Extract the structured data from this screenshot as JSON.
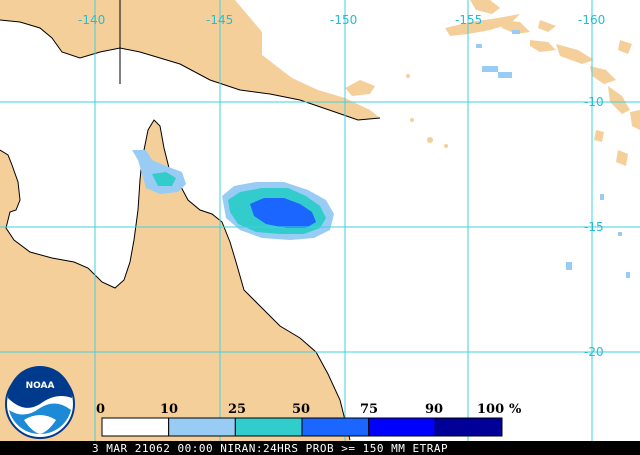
{
  "map": {
    "longitude_labels": [
      "-140",
      "-145",
      "-150",
      "-155",
      "-160"
    ],
    "latitude_labels": [
      "-10",
      "-15",
      "-20"
    ],
    "land_color": "#f5cf9a",
    "grid_color": "#3fd0e0"
  },
  "legend": {
    "ticks": [
      "0",
      "10",
      "25",
      "50",
      "75",
      "90",
      "100"
    ],
    "unit": "%",
    "bins": [
      {
        "from": 0,
        "to": 10,
        "color": "#ffffff"
      },
      {
        "from": 10,
        "to": 25,
        "color": "#99ccf5"
      },
      {
        "from": 25,
        "to": 50,
        "color": "#33cccc"
      },
      {
        "from": 50,
        "to": 75,
        "color": "#1a66ff"
      },
      {
        "from": 75,
        "to": 90,
        "color": "#0000ff"
      },
      {
        "from": 90,
        "to": 100,
        "color": "#000099"
      }
    ]
  },
  "logo": {
    "text": "NOAA"
  },
  "footer": {
    "text": "3 MAR 21062 00:00 NIRAN:24HRS PROB >= 150 MM ETRAP"
  }
}
